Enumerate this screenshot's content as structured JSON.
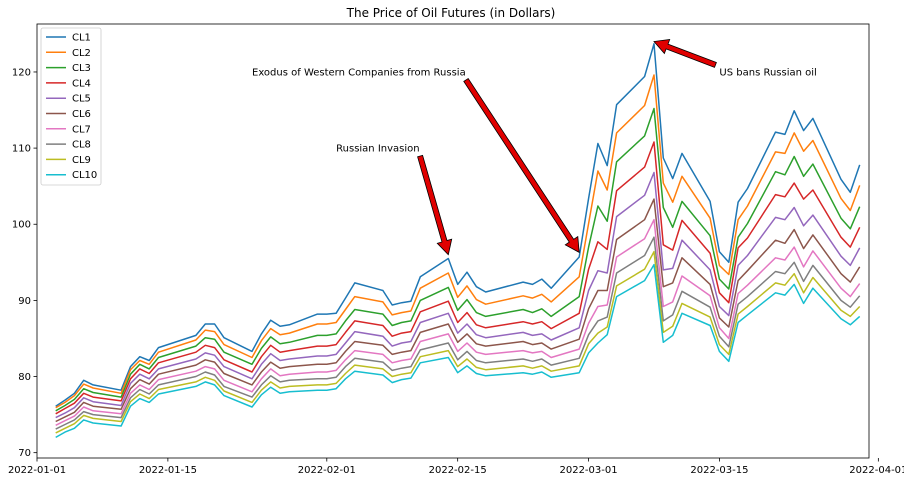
{
  "chart_data": {
    "type": "line",
    "title": "The Price of Oil Futures (in Dollars)",
    "xlabel": "",
    "ylabel": "",
    "xlim": [
      "2022-01-01",
      "2022-03-31"
    ],
    "ylim": [
      69.3,
      126.3
    ],
    "x_ticks": [
      "2022-01-01",
      "2022-01-15",
      "2022-02-01",
      "2022-02-15",
      "2022-03-01",
      "2022-03-15",
      "2022-04-01"
    ],
    "y_ticks": [
      70,
      80,
      90,
      100,
      110,
      120
    ],
    "grid": false,
    "legend_position": "upper-left",
    "x": [
      "2022-01-03",
      "2022-01-04",
      "2022-01-05",
      "2022-01-06",
      "2022-01-07",
      "2022-01-10",
      "2022-01-11",
      "2022-01-12",
      "2022-01-13",
      "2022-01-14",
      "2022-01-18",
      "2022-01-19",
      "2022-01-20",
      "2022-01-21",
      "2022-01-24",
      "2022-01-25",
      "2022-01-26",
      "2022-01-27",
      "2022-01-28",
      "2022-01-31",
      "2022-02-01",
      "2022-02-02",
      "2022-02-03",
      "2022-02-04",
      "2022-02-07",
      "2022-02-08",
      "2022-02-09",
      "2022-02-10",
      "2022-02-11",
      "2022-02-14",
      "2022-02-15",
      "2022-02-16",
      "2022-02-17",
      "2022-02-18",
      "2022-02-22",
      "2022-02-23",
      "2022-02-24",
      "2022-02-25",
      "2022-02-28",
      "2022-03-01",
      "2022-03-02",
      "2022-03-03",
      "2022-03-04",
      "2022-03-07",
      "2022-03-08",
      "2022-03-09",
      "2022-03-10",
      "2022-03-11",
      "2022-03-14",
      "2022-03-15",
      "2022-03-16",
      "2022-03-17",
      "2022-03-18",
      "2022-03-21",
      "2022-03-22",
      "2022-03-23",
      "2022-03-24",
      "2022-03-25",
      "2022-03-28",
      "2022-03-29",
      "2022-03-30"
    ],
    "series": [
      {
        "name": "CL1",
        "color": "#1f77b4",
        "values": [
          76.1,
          76.9,
          77.8,
          79.5,
          78.9,
          78.2,
          81.3,
          82.6,
          82.1,
          83.8,
          85.4,
          86.9,
          86.9,
          85.1,
          83.3,
          85.6,
          87.4,
          86.6,
          86.8,
          88.2,
          88.2,
          88.3,
          90.3,
          92.3,
          91.3,
          89.4,
          89.7,
          89.9,
          93.1,
          95.5,
          92.1,
          93.7,
          91.8,
          91.1,
          92.4,
          92.1,
          92.8,
          91.6,
          95.7,
          103.4,
          110.6,
          107.7,
          115.7,
          119.4,
          123.7,
          108.7,
          106.0,
          109.3,
          103.0,
          96.4,
          95.0,
          102.9,
          104.7,
          112.1,
          111.8,
          114.9,
          112.3,
          113.9,
          105.9,
          104.2,
          107.8
        ]
      },
      {
        "name": "CL2",
        "color": "#ff7f0e",
        "values": [
          75.9,
          76.6,
          77.5,
          79.0,
          78.5,
          77.8,
          80.9,
          82.1,
          81.6,
          83.2,
          84.8,
          86.1,
          85.9,
          84.2,
          82.5,
          84.7,
          86.3,
          85.5,
          85.7,
          86.9,
          86.9,
          87.1,
          88.8,
          90.5,
          89.8,
          88.1,
          88.4,
          88.6,
          91.6,
          93.6,
          90.4,
          91.9,
          90.1,
          89.5,
          90.6,
          90.3,
          90.8,
          89.8,
          93.1,
          100.1,
          107.0,
          104.5,
          112.0,
          115.6,
          119.6,
          105.4,
          102.9,
          106.3,
          100.8,
          94.6,
          93.4,
          100.6,
          102.4,
          109.5,
          109.3,
          112.0,
          109.6,
          111.0,
          103.4,
          101.8,
          105.1
        ]
      },
      {
        "name": "CL3",
        "color": "#2ca02c",
        "values": [
          75.5,
          76.2,
          77.0,
          78.4,
          77.9,
          77.3,
          80.3,
          81.6,
          81.0,
          82.5,
          84.0,
          85.1,
          84.9,
          83.2,
          81.6,
          83.7,
          85.2,
          84.3,
          84.5,
          85.4,
          85.4,
          85.6,
          87.3,
          88.8,
          88.2,
          86.7,
          87.1,
          87.3,
          90.0,
          91.7,
          88.7,
          90.1,
          88.4,
          87.9,
          88.8,
          88.4,
          88.9,
          87.9,
          90.5,
          97.0,
          102.4,
          100.4,
          108.2,
          111.6,
          115.2,
          102.2,
          99.6,
          103.0,
          98.5,
          92.8,
          91.5,
          98.3,
          100.1,
          106.9,
          106.5,
          108.9,
          106.3,
          107.9,
          100.8,
          99.4,
          102.3
        ]
      },
      {
        "name": "CL4",
        "color": "#d62728",
        "values": [
          75.1,
          75.8,
          76.5,
          77.8,
          77.3,
          76.8,
          79.7,
          81.0,
          80.4,
          81.8,
          83.2,
          84.1,
          83.8,
          82.2,
          80.6,
          82.6,
          84.1,
          83.2,
          83.4,
          84.0,
          84.0,
          84.2,
          85.8,
          87.3,
          86.7,
          85.3,
          85.7,
          85.9,
          88.5,
          89.9,
          87.1,
          88.4,
          86.8,
          86.4,
          87.2,
          86.9,
          87.2,
          86.3,
          88.3,
          94.1,
          97.7,
          96.7,
          104.4,
          107.5,
          110.8,
          97.3,
          96.6,
          100.5,
          96.2,
          91.0,
          89.7,
          96.9,
          98.2,
          103.9,
          103.6,
          105.4,
          103.3,
          104.5,
          98.3,
          97.0,
          99.6
        ]
      },
      {
        "name": "CL5",
        "color": "#9467bd",
        "values": [
          74.6,
          75.2,
          75.9,
          77.2,
          76.7,
          76.2,
          79.1,
          80.3,
          79.7,
          81.0,
          82.3,
          83.1,
          82.8,
          81.3,
          79.7,
          81.6,
          83.0,
          82.1,
          82.3,
          82.7,
          82.7,
          82.9,
          84.4,
          85.9,
          85.3,
          84.0,
          84.4,
          84.6,
          87.1,
          88.3,
          85.7,
          86.9,
          85.5,
          85.1,
          85.8,
          85.4,
          85.6,
          84.8,
          86.4,
          91.3,
          93.9,
          93.6,
          101.0,
          103.8,
          106.8,
          94.0,
          94.2,
          97.9,
          94.0,
          89.2,
          88.0,
          94.6,
          95.9,
          100.9,
          100.6,
          102.2,
          99.8,
          101.2,
          95.8,
          94.6,
          96.9
        ]
      },
      {
        "name": "CL6",
        "color": "#8c564b",
        "values": [
          74.1,
          74.7,
          75.3,
          76.6,
          76.1,
          75.7,
          78.4,
          79.6,
          79.0,
          80.3,
          81.5,
          82.2,
          81.9,
          80.4,
          78.9,
          80.6,
          81.9,
          81.1,
          81.3,
          81.6,
          81.6,
          81.8,
          83.3,
          84.6,
          84.1,
          82.9,
          83.2,
          83.4,
          85.8,
          86.9,
          84.5,
          85.6,
          84.3,
          84.0,
          84.6,
          84.2,
          84.4,
          83.6,
          84.9,
          88.9,
          91.3,
          91.3,
          98.0,
          100.6,
          103.3,
          91.8,
          92.3,
          95.6,
          92.1,
          87.7,
          86.5,
          92.6,
          93.9,
          97.9,
          97.5,
          99.3,
          96.8,
          98.6,
          93.5,
          92.4,
          94.4
        ]
      },
      {
        "name": "CL7",
        "color": "#e377c2",
        "values": [
          73.6,
          74.2,
          74.8,
          76.0,
          75.5,
          75.1,
          77.8,
          78.9,
          78.3,
          79.6,
          80.7,
          81.3,
          81.0,
          79.5,
          78.0,
          79.7,
          81.0,
          80.1,
          80.3,
          80.6,
          80.6,
          80.8,
          82.2,
          83.4,
          82.9,
          81.8,
          82.1,
          82.3,
          84.6,
          85.6,
          83.3,
          84.4,
          83.2,
          82.9,
          83.4,
          83.1,
          83.3,
          82.5,
          83.6,
          87.0,
          89.2,
          89.4,
          95.7,
          98.1,
          100.6,
          89.2,
          89.8,
          93.2,
          90.6,
          86.4,
          85.0,
          90.9,
          92.0,
          95.6,
          95.3,
          97.0,
          94.4,
          96.5,
          91.6,
          90.5,
          92.2
        ]
      },
      {
        "name": "CL8",
        "color": "#7f7f7f",
        "values": [
          73.1,
          73.7,
          74.3,
          75.4,
          75.0,
          74.6,
          77.2,
          78.3,
          77.7,
          78.9,
          80.0,
          80.6,
          80.2,
          78.7,
          77.3,
          78.9,
          80.1,
          79.3,
          79.5,
          79.7,
          79.7,
          79.9,
          81.3,
          82.4,
          81.9,
          80.8,
          81.1,
          81.3,
          83.5,
          84.4,
          82.2,
          83.3,
          82.1,
          81.8,
          82.3,
          82.0,
          82.3,
          81.5,
          82.4,
          85.5,
          87.3,
          87.8,
          93.6,
          95.9,
          98.3,
          87.3,
          88.1,
          91.2,
          89.1,
          85.3,
          83.9,
          89.5,
          90.5,
          93.8,
          93.5,
          95.0,
          92.5,
          94.6,
          90.0,
          89.1,
          90.6
        ]
      },
      {
        "name": "CL9",
        "color": "#bcbd22",
        "values": [
          72.6,
          73.2,
          73.8,
          74.9,
          74.5,
          74.1,
          76.7,
          77.7,
          77.1,
          78.3,
          79.3,
          79.9,
          79.5,
          78.1,
          76.6,
          78.2,
          79.3,
          78.5,
          78.7,
          78.9,
          78.9,
          79.1,
          80.4,
          81.5,
          81.0,
          80.0,
          80.3,
          80.5,
          82.6,
          83.4,
          81.3,
          82.3,
          81.2,
          80.9,
          81.4,
          81.1,
          81.4,
          80.7,
          81.4,
          84.3,
          85.7,
          86.5,
          91.9,
          94.1,
          96.4,
          85.8,
          86.6,
          89.6,
          87.8,
          84.2,
          82.9,
          88.2,
          89.2,
          92.3,
          92.0,
          93.5,
          91.0,
          93.0,
          88.7,
          87.9,
          89.2
        ]
      },
      {
        "name": "CL10",
        "color": "#17becf",
        "values": [
          72.0,
          72.7,
          73.2,
          74.3,
          73.9,
          73.5,
          76.1,
          77.1,
          76.6,
          77.7,
          78.7,
          79.3,
          78.9,
          77.5,
          76.0,
          77.6,
          78.6,
          77.8,
          78.0,
          78.2,
          78.2,
          78.4,
          79.7,
          80.7,
          80.2,
          79.2,
          79.6,
          79.8,
          81.8,
          82.5,
          80.5,
          81.4,
          80.4,
          80.1,
          80.5,
          80.3,
          80.6,
          79.9,
          80.5,
          83.1,
          84.4,
          85.5,
          90.5,
          92.6,
          94.7,
          84.5,
          85.4,
          88.3,
          86.7,
          83.3,
          82.0,
          87.1,
          88.1,
          91.0,
          90.7,
          92.1,
          89.6,
          91.6,
          87.6,
          86.8,
          87.9
        ]
      }
    ],
    "annotations": [
      {
        "text": "Russian Invasion",
        "label_x": "2022-02-02",
        "label_y": 110,
        "point_x": "2022-02-14",
        "point_y": 96
      },
      {
        "text": "Exodus of Western Companies from Russia",
        "label_x": "2022-01-24",
        "label_y": 120,
        "point_x": "2022-02-28",
        "point_y": 96.3
      },
      {
        "text": "US bans Russian oil",
        "label_x": "2022-03-15",
        "label_y": 120,
        "point_x": "2022-03-08",
        "point_y": 124
      }
    ]
  }
}
